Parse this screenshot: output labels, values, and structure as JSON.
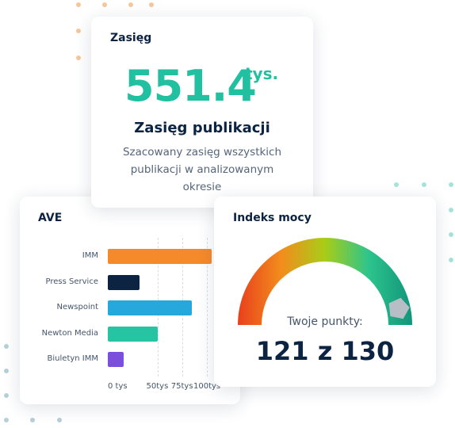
{
  "reach_card": {
    "title": "Zasięg",
    "value": "551.4",
    "unit": "tys.",
    "heading": "Zasięg publikacji",
    "description": "Szacowany zasięg wszystkich publikacji w analizowanym okresie"
  },
  "ave_card": {
    "title": "AVE"
  },
  "power_card": {
    "title": "Indeks mocy",
    "caption": "Twoje punkty:",
    "score_text": "121 z 130",
    "score": 121,
    "max": 130
  },
  "chart_data": {
    "type": "bar",
    "orientation": "horizontal",
    "categories": [
      "IMM",
      "Press Service",
      "Newspoint",
      "Newton Media",
      "Biuletyn IMM"
    ],
    "values": [
      105,
      32,
      85,
      50,
      16
    ],
    "colors": [
      "#f58a2a",
      "#0c2341",
      "#27a8dc",
      "#27c4a4",
      "#7b4fdc"
    ],
    "tick_labels": [
      "0 tys",
      "50tys",
      "75tys",
      "100tys"
    ],
    "tick_values": [
      0,
      50,
      75,
      100
    ],
    "xlim": [
      0,
      100
    ],
    "title": "AVE",
    "grid": true
  },
  "colors": {
    "accent": "#20c0a0",
    "navy": "#0c2341",
    "gauge_gradient": [
      "#e8401c",
      "#f28d1c",
      "#a8cd18",
      "#2dc48d",
      "#10957a"
    ]
  },
  "icons": {
    "gauge_needle": "gauge-needle-icon"
  }
}
